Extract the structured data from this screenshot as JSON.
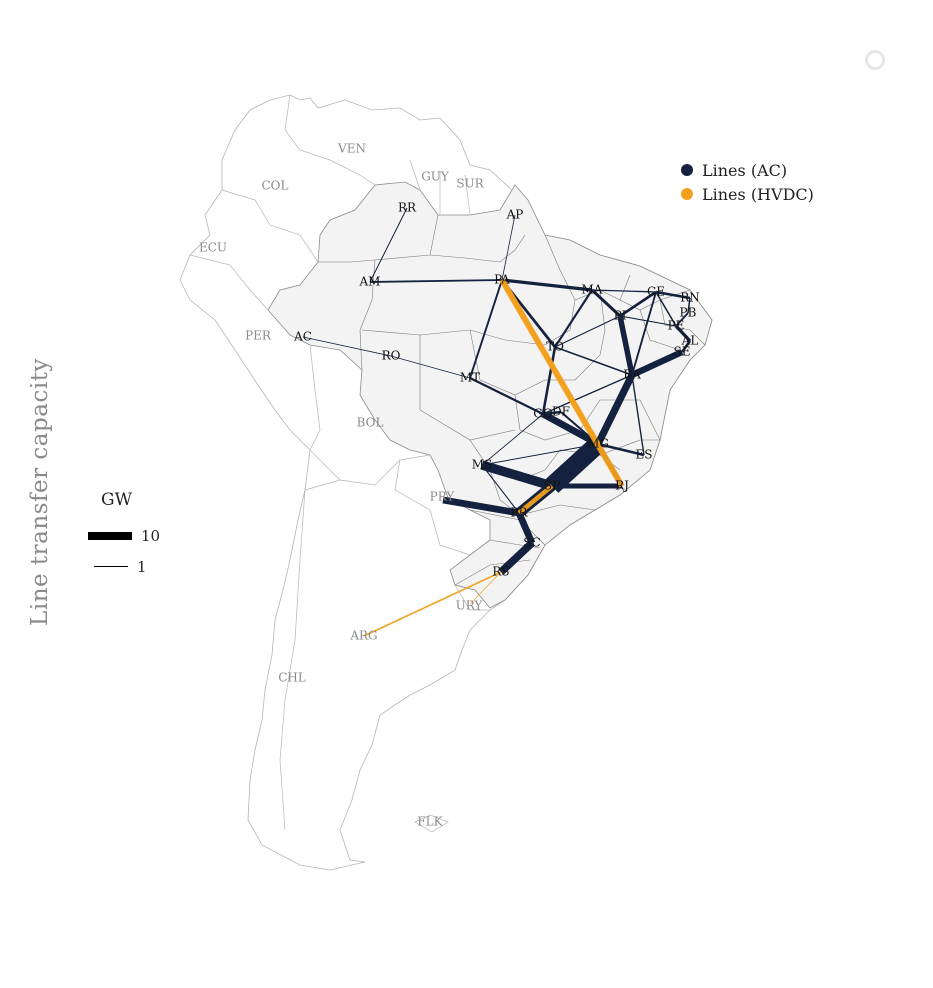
{
  "title": "Line transfer capacity",
  "colors": {
    "ac": "#15223f",
    "hvdc": "#f2a01d",
    "land_brazil": "#f3f3f3",
    "border": "#9e9e9e",
    "country_label": "#8a8a8a",
    "node_label": "#111111"
  },
  "legend": {
    "entries": [
      {
        "label": "Lines (AC)",
        "color": "#15223f"
      },
      {
        "label": "Lines (HVDC)",
        "color": "#f2a01d"
      }
    ]
  },
  "width_legend": {
    "unit": "GW",
    "entries": [
      {
        "label": "10",
        "value": 10
      },
      {
        "label": "1",
        "value": 1
      }
    ]
  },
  "top_icon": "circle-outline-icon",
  "countries": [
    "VEN",
    "GUY",
    "SUR",
    "COL",
    "ECU",
    "PER",
    "BOL",
    "PRY",
    "URY",
    "ARG",
    "CHL",
    "FLK"
  ],
  "nodes": [
    "RR",
    "AP",
    "AM",
    "PA",
    "MA",
    "CE",
    "RN",
    "PB",
    "PE",
    "PI",
    "AL",
    "SE",
    "TO",
    "BA",
    "AC",
    "RO",
    "MT",
    "GO",
    "DF",
    "MG",
    "ES",
    "MS",
    "SP",
    "RJ",
    "PR",
    "SC",
    "RS",
    "ARG"
  ],
  "lines_ac": [
    {
      "from": "RR",
      "to": "AM",
      "gw": 1.2
    },
    {
      "from": "AP",
      "to": "PA",
      "gw": 0.8
    },
    {
      "from": "AM",
      "to": "PA",
      "gw": 2.2
    },
    {
      "from": "PA",
      "to": "MA",
      "gw": 3.8
    },
    {
      "from": "PA",
      "to": "TO",
      "gw": 3.2
    },
    {
      "from": "PA",
      "to": "MT",
      "gw": 2.3
    },
    {
      "from": "MA",
      "to": "PI",
      "gw": 3.5
    },
    {
      "from": "MA",
      "to": "TO",
      "gw": 2.5
    },
    {
      "from": "MA",
      "to": "CE",
      "gw": 1.6
    },
    {
      "from": "PI",
      "to": "CE",
      "gw": 3.2
    },
    {
      "from": "PI",
      "to": "BA",
      "gw": 6.5
    },
    {
      "from": "PI",
      "to": "TO",
      "gw": 1.3
    },
    {
      "from": "PI",
      "to": "PE",
      "gw": 1.3
    },
    {
      "from": "CE",
      "to": "RN",
      "gw": 3.0
    },
    {
      "from": "CE",
      "to": "PE",
      "gw": 1.8
    },
    {
      "from": "CE",
      "to": "BA",
      "gw": 2.2
    },
    {
      "from": "RN",
      "to": "PB",
      "gw": 1.8
    },
    {
      "from": "PB",
      "to": "PE",
      "gw": 2.2
    },
    {
      "from": "PE",
      "to": "AL",
      "gw": 3.8
    },
    {
      "from": "AL",
      "to": "SE",
      "gw": 3.0
    },
    {
      "from": "SE",
      "to": "BA",
      "gw": 7.5
    },
    {
      "from": "TO",
      "to": "GO",
      "gw": 3.0
    },
    {
      "from": "TO",
      "to": "BA",
      "gw": 1.8
    },
    {
      "from": "BA",
      "to": "GO",
      "gw": 1.6
    },
    {
      "from": "BA",
      "to": "MG",
      "gw": 8.5
    },
    {
      "from": "BA",
      "to": "ES",
      "gw": 1.6
    },
    {
      "from": "AC",
      "to": "RO",
      "gw": 0.8
    },
    {
      "from": "RO",
      "to": "MT",
      "gw": 0.9
    },
    {
      "from": "MT",
      "to": "GO",
      "gw": 2.6
    },
    {
      "from": "GO",
      "to": "DF",
      "gw": 3.0
    },
    {
      "from": "GO",
      "to": "MG",
      "gw": 8.0
    },
    {
      "from": "DF",
      "to": "MG",
      "gw": 2.5
    },
    {
      "from": "GO",
      "to": "MS",
      "gw": 1.0
    },
    {
      "from": "MG",
      "to": "ES",
      "gw": 3.0
    },
    {
      "from": "MG",
      "to": "RJ",
      "gw": 4.5
    },
    {
      "from": "MG",
      "to": "SP",
      "gw": 22.0
    },
    {
      "from": "MS",
      "to": "MG",
      "gw": 1.2
    },
    {
      "from": "MS",
      "to": "SP",
      "gw": 11.0
    },
    {
      "from": "MS",
      "to": "PR",
      "gw": 1.3
    },
    {
      "from": "SP",
      "to": "RJ",
      "gw": 6.0
    },
    {
      "from": "SP",
      "to": "PR",
      "gw": 12.0
    },
    {
      "from": "PR",
      "to": "SC",
      "gw": 8.0
    },
    {
      "from": "SC",
      "to": "RS",
      "gw": 9.0
    },
    {
      "from": "PRY",
      "to": "PR",
      "gw": 8.0
    }
  ],
  "lines_hvdc": [
    {
      "from": "PA",
      "to": "RJ",
      "gw": 7.0
    },
    {
      "from": "PA",
      "to": "MG",
      "gw": 4.0
    },
    {
      "from": "PR",
      "to": "SP",
      "gw": 5.5
    },
    {
      "from": "RS",
      "to": "ARG",
      "gw": 2.0
    },
    {
      "from": "RS",
      "to": "URY",
      "gw": 0.8
    }
  ]
}
